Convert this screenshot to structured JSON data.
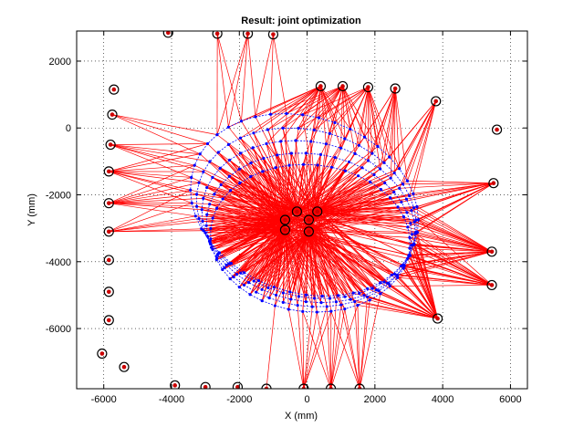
{
  "window": {
    "background": "#ffffff"
  },
  "chart_data": {
    "type": "scatter",
    "title": "Result: joint optimization",
    "xlabel": "X (mm)",
    "ylabel": "Y (mm)",
    "xlim": [
      -6800,
      6500
    ],
    "ylim": [
      -7800,
      2900
    ],
    "xticks": [
      -6000,
      -4000,
      -2000,
      0,
      2000,
      4000,
      6000
    ],
    "yticks": [
      -6000,
      -4000,
      -2000,
      0,
      2000
    ],
    "xtick_labels": [
      "-6000",
      "-4000",
      "-2000",
      "0",
      "2000",
      "4000",
      "6000"
    ],
    "ytick_labels": [
      "-6000",
      "-4000",
      "-2000",
      "0",
      "2000"
    ],
    "grid": true,
    "grid_style": "dotted",
    "colors": {
      "rays": "#ff0000",
      "trajectory": "#0000ff",
      "landmarks": "#000000",
      "observed": "#cc0000"
    },
    "series": [
      {
        "role": "landmarks",
        "marker": "circle",
        "points": [
          [
            -4100,
            2850
          ],
          [
            -2650,
            2820
          ],
          [
            -1750,
            2820
          ],
          [
            -1000,
            2800
          ],
          [
            400,
            1250
          ],
          [
            1050,
            1250
          ],
          [
            1800,
            1220
          ],
          [
            2600,
            1180
          ],
          [
            3800,
            800
          ],
          [
            5600,
            -50
          ],
          [
            5500,
            -1650
          ],
          [
            5450,
            -3700
          ],
          [
            5450,
            -4700
          ],
          [
            3850,
            -5700
          ],
          [
            -5700,
            1150
          ],
          [
            -5750,
            400
          ],
          [
            -5800,
            -500
          ],
          [
            -5850,
            -1300
          ],
          [
            -5850,
            -2250
          ],
          [
            -5850,
            -3100
          ],
          [
            -5850,
            -3950
          ],
          [
            -5850,
            -4900
          ],
          [
            -5850,
            -5750
          ],
          [
            -6050,
            -6750
          ],
          [
            -5400,
            -7150
          ],
          [
            -3900,
            -7700
          ],
          [
            -3000,
            -7750
          ],
          [
            -2050,
            -7750
          ],
          [
            -1200,
            -7800
          ],
          [
            -100,
            -7800
          ],
          [
            700,
            -7800
          ],
          [
            1550,
            -7800
          ]
        ]
      },
      {
        "role": "central-landmarks",
        "marker": "circle",
        "points": [
          [
            -300,
            -2500
          ],
          [
            300,
            -2500
          ],
          [
            -650,
            -2750
          ],
          [
            -650,
            -3050
          ],
          [
            50,
            -2750
          ],
          [
            50,
            -3100
          ]
        ]
      },
      {
        "role": "trajectory",
        "marker": "dot",
        "loops": [
          {
            "cx": -80,
            "cy": -2300,
            "rx": 3450,
            "ry": 2620,
            "rot": -0.35,
            "n": 44
          },
          {
            "cx": -20,
            "cy": -2550,
            "rx": 3300,
            "ry": 2480,
            "rot": -0.28,
            "n": 44
          },
          {
            "cx": 40,
            "cy": -2800,
            "rx": 3180,
            "ry": 2380,
            "rot": -0.22,
            "n": 44
          },
          {
            "cx": 60,
            "cy": -3050,
            "rx": 3050,
            "ry": 2280,
            "rot": -0.15,
            "n": 44
          },
          {
            "cx": 90,
            "cy": -3300,
            "rx": 2950,
            "ry": 2200,
            "rot": -0.1,
            "n": 44
          }
        ]
      }
    ]
  }
}
